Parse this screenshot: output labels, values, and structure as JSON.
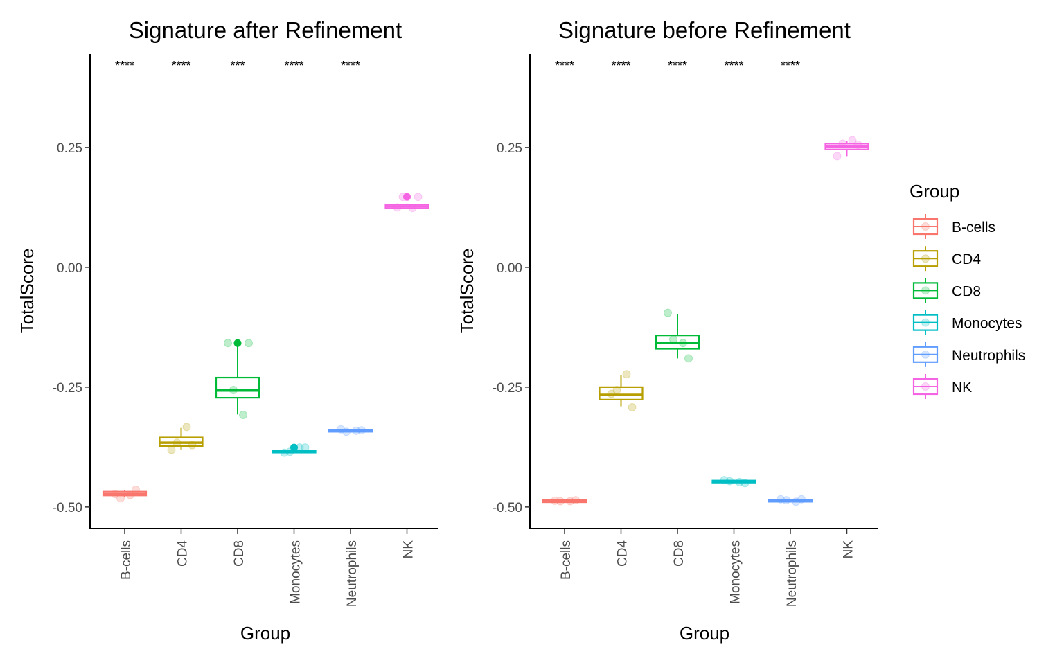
{
  "chart_data": [
    {
      "type": "boxplot",
      "title": "Signature after Refinement",
      "xlabel": "Group",
      "ylabel": "TotalScore",
      "categories": [
        "B-cells",
        "CD4",
        "CD8",
        "Monocytes",
        "Neutrophils",
        "NK"
      ],
      "yticks": [
        "0.25",
        "0.00",
        "-0.25",
        "-0.50"
      ],
      "ylim": [
        -0.545,
        0.445
      ],
      "significance": [
        "****",
        "****",
        "***",
        "****",
        "****",
        ""
      ],
      "boxes": [
        {
          "category": "B-cells",
          "min": -0.48,
          "q1": -0.476,
          "median": -0.473,
          "q3": -0.468,
          "max": -0.465
        },
        {
          "category": "CD4",
          "min": -0.38,
          "q1": -0.373,
          "median": -0.366,
          "q3": -0.355,
          "max": -0.335
        },
        {
          "category": "CD8",
          "min": -0.307,
          "q1": -0.272,
          "median": -0.257,
          "q3": -0.23,
          "max": -0.16
        },
        {
          "category": "Monocytes",
          "min": -0.386,
          "q1": -0.386,
          "median": -0.385,
          "q3": -0.383,
          "max": -0.38
        },
        {
          "category": "Neutrophils",
          "min": -0.342,
          "q1": -0.342,
          "median": -0.341,
          "q3": -0.34,
          "max": -0.339
        },
        {
          "category": "NK",
          "min": 0.122,
          "q1": 0.123,
          "median": 0.127,
          "q3": 0.131,
          "max": 0.133
        }
      ],
      "points": [
        {
          "category": "B-cells",
          "values": [
            -0.473,
            -0.475,
            -0.482,
            -0.464
          ]
        },
        {
          "category": "CD4",
          "values": [
            -0.381,
            -0.333,
            -0.366,
            -0.371
          ]
        },
        {
          "category": "CD8",
          "values": [
            -0.158,
            -0.308,
            -0.256,
            -0.158
          ]
        },
        {
          "category": "Monocytes",
          "values": [
            -0.387,
            -0.376,
            -0.385,
            -0.376
          ]
        },
        {
          "category": "Neutrophils",
          "values": [
            -0.338,
            -0.341,
            -0.343,
            -0.34
          ]
        },
        {
          "category": "NK",
          "values": [
            0.125,
            0.124,
            0.147,
            0.147
          ]
        }
      ],
      "outliers": [
        {
          "category": "CD8",
          "value": -0.158
        },
        {
          "category": "Monocytes",
          "value": -0.376
        },
        {
          "category": "NK",
          "value": 0.147
        }
      ]
    },
    {
      "type": "boxplot",
      "title": "Signature before Refinement",
      "xlabel": "Group",
      "ylabel": "TotalScore",
      "categories": [
        "B-cells",
        "CD4",
        "CD8",
        "Monocytes",
        "Neutrophils",
        "NK"
      ],
      "yticks": [
        "0.25",
        "0.00",
        "-0.25",
        "-0.50"
      ],
      "ylim": [
        -0.545,
        0.445
      ],
      "significance": [
        "****",
        "****",
        "****",
        "****",
        "****",
        ""
      ],
      "boxes": [
        {
          "category": "B-cells",
          "min": -0.489,
          "q1": -0.489,
          "median": -0.488,
          "q3": -0.487,
          "max": -0.486
        },
        {
          "category": "CD4",
          "min": -0.29,
          "q1": -0.276,
          "median": -0.266,
          "q3": -0.25,
          "max": -0.225
        },
        {
          "category": "CD8",
          "min": -0.19,
          "q1": -0.17,
          "median": -0.158,
          "q3": -0.142,
          "max": -0.097
        },
        {
          "category": "Monocytes",
          "min": -0.449,
          "q1": -0.449,
          "median": -0.447,
          "q3": -0.445,
          "max": -0.444
        },
        {
          "category": "Neutrophils",
          "min": -0.489,
          "q1": -0.489,
          "median": -0.487,
          "q3": -0.485,
          "max": -0.484
        },
        {
          "category": "NK",
          "min": 0.232,
          "q1": 0.246,
          "median": 0.252,
          "q3": 0.258,
          "max": 0.264
        }
      ],
      "points": [
        {
          "category": "B-cells",
          "values": [
            -0.487,
            -0.488,
            -0.488,
            -0.486
          ]
        },
        {
          "category": "CD4",
          "values": [
            -0.264,
            -0.223,
            -0.256,
            -0.292
          ]
        },
        {
          "category": "CD8",
          "values": [
            -0.095,
            -0.158,
            -0.15,
            -0.19
          ]
        },
        {
          "category": "Monocytes",
          "values": [
            -0.444,
            -0.448,
            -0.446,
            -0.45
          ]
        },
        {
          "category": "Neutrophils",
          "values": [
            -0.484,
            -0.489,
            -0.486,
            -0.484
          ]
        },
        {
          "category": "NK",
          "values": [
            0.232,
            0.265,
            0.258,
            0.256
          ]
        }
      ],
      "outliers": []
    }
  ],
  "legend": {
    "title": "Group",
    "placement": "right",
    "items": [
      {
        "label": "B-cells",
        "color": "#F8766D"
      },
      {
        "label": "CD4",
        "color": "#B79F00"
      },
      {
        "label": "CD8",
        "color": "#00BA38"
      },
      {
        "label": "Monocytes",
        "color": "#00BFC4"
      },
      {
        "label": "Neutrophils",
        "color": "#619CFF"
      },
      {
        "label": "NK",
        "color": "#F564E3"
      }
    ]
  }
}
